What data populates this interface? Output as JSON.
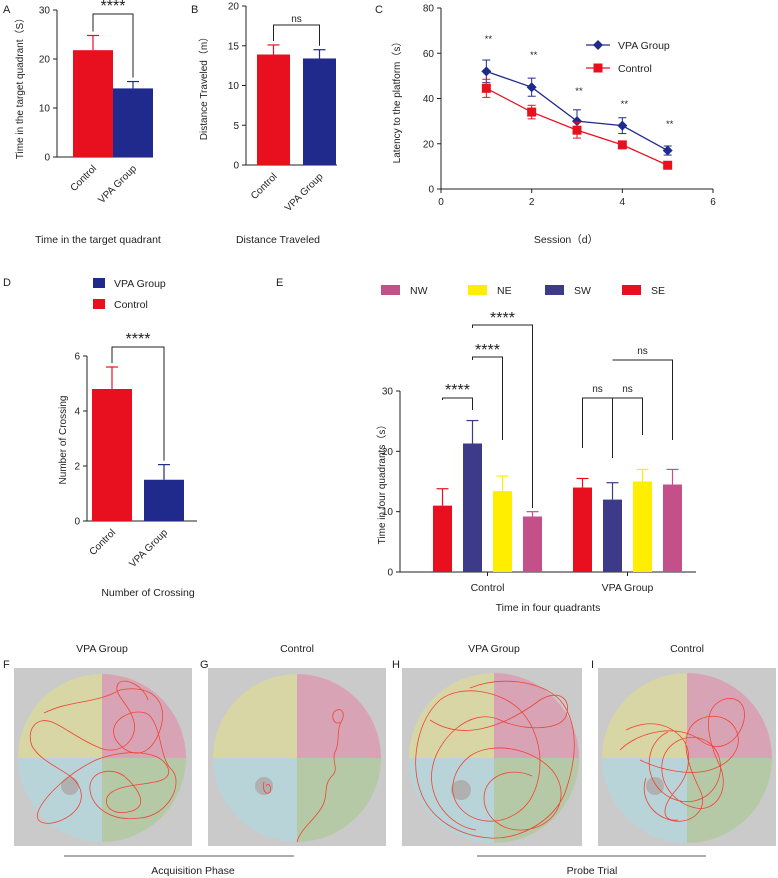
{
  "panel_letters": [
    "A",
    "B",
    "C",
    "D",
    "E",
    "F",
    "G",
    "H",
    "I"
  ],
  "colors": {
    "vpa": "#1f2a8c",
    "control": "#e8101f",
    "nw": "#c4508a",
    "ne": "#ffee00",
    "sw": "#3e3a8a",
    "se": "#e8101f",
    "pool_nw": "#d7d6a4",
    "pool_ne": "#d9a3b6",
    "pool_sw": "#b8d4d8",
    "pool_se": "#b6c9a6",
    "tank": "#cacaca",
    "path": "#ee4433"
  },
  "chart_data": [
    {
      "id": "A",
      "type": "bar",
      "title": "Time in the target quadrant",
      "ylabel": "Time in the target quadrant（S）",
      "categories": [
        "Control",
        "VPA Group"
      ],
      "values": [
        21.8,
        14.0
      ],
      "errors": [
        3.0,
        1.4
      ],
      "ylim": [
        0,
        30
      ],
      "yticks": [
        0,
        10,
        20,
        30
      ],
      "significance": "****"
    },
    {
      "id": "B",
      "type": "bar",
      "title": "Distance Traveled",
      "ylabel": "Distance Traveled（m）",
      "categories": [
        "Control",
        "VPA Group"
      ],
      "values": [
        13.9,
        13.4
      ],
      "errors": [
        1.2,
        1.1
      ],
      "ylim": [
        0,
        20
      ],
      "yticks": [
        0,
        5,
        10,
        15,
        20
      ],
      "significance": "ns"
    },
    {
      "id": "C",
      "type": "line",
      "xlabel": "Session（d）",
      "ylabel": "Latency to the platform（s）",
      "xlim": [
        0,
        6
      ],
      "ylim": [
        0,
        80
      ],
      "xticks": [
        0,
        2,
        4,
        6
      ],
      "yticks": [
        0,
        20,
        40,
        60,
        80
      ],
      "x": [
        1,
        2,
        3,
        4,
        5
      ],
      "series": [
        {
          "name": "VPA Group",
          "values": [
            52,
            45,
            30,
            28,
            17
          ],
          "errors": [
            5,
            4,
            5,
            3.5,
            2
          ]
        },
        {
          "name": "Control",
          "values": [
            44.5,
            34,
            26,
            19.5,
            10.5
          ],
          "errors": [
            4,
            3,
            3.5,
            1.5,
            1.5
          ]
        }
      ],
      "annotations": [
        "**",
        "**",
        "**",
        "**",
        "**"
      ]
    },
    {
      "id": "D",
      "type": "bar",
      "title": "Number of Crossing",
      "ylabel": "Number of Crossing",
      "categories": [
        "Control",
        "VPA Group"
      ],
      "values": [
        4.8,
        1.5
      ],
      "errors": [
        0.8,
        0.55
      ],
      "ylim": [
        0,
        6
      ],
      "yticks": [
        0,
        2,
        4,
        6
      ],
      "legend": [
        "VPA Group",
        "Control"
      ],
      "significance": "****"
    },
    {
      "id": "E",
      "type": "bar",
      "title": "Time in four quadrants",
      "ylabel": "Time in four quadrants（s）",
      "groups": [
        "Control",
        "VPA Group"
      ],
      "legend": [
        "NW",
        "NE",
        "SW",
        "SE"
      ],
      "ylim": [
        0,
        30
      ],
      "yticks": [
        0,
        10,
        20,
        30
      ],
      "series_by_group": [
        {
          "group": "Control",
          "bars": [
            {
              "label": "SE",
              "value": 11.0,
              "error": 2.8
            },
            {
              "label": "SW",
              "value": 21.3,
              "error": 3.8
            },
            {
              "label": "NE",
              "value": 13.4,
              "error": 2.5
            },
            {
              "label": "NW",
              "value": 9.2,
              "error": 0.8
            }
          ]
        },
        {
          "group": "VPA Group",
          "bars": [
            {
              "label": "SE",
              "value": 14.0,
              "error": 1.5
            },
            {
              "label": "SW",
              "value": 12.0,
              "error": 2.8
            },
            {
              "label": "NE",
              "value": 15.0,
              "error": 2.0
            },
            {
              "label": "NW",
              "value": 14.5,
              "error": 2.5
            }
          ]
        }
      ],
      "significance": [
        "****",
        "****",
        "****",
        "ns",
        "ns",
        "ns"
      ]
    }
  ],
  "trajectories": {
    "titles": [
      "VPA Group",
      "Control",
      "VPA Group",
      "Control"
    ],
    "phases": [
      "Acquisition Phase",
      "Probe Trial"
    ]
  }
}
